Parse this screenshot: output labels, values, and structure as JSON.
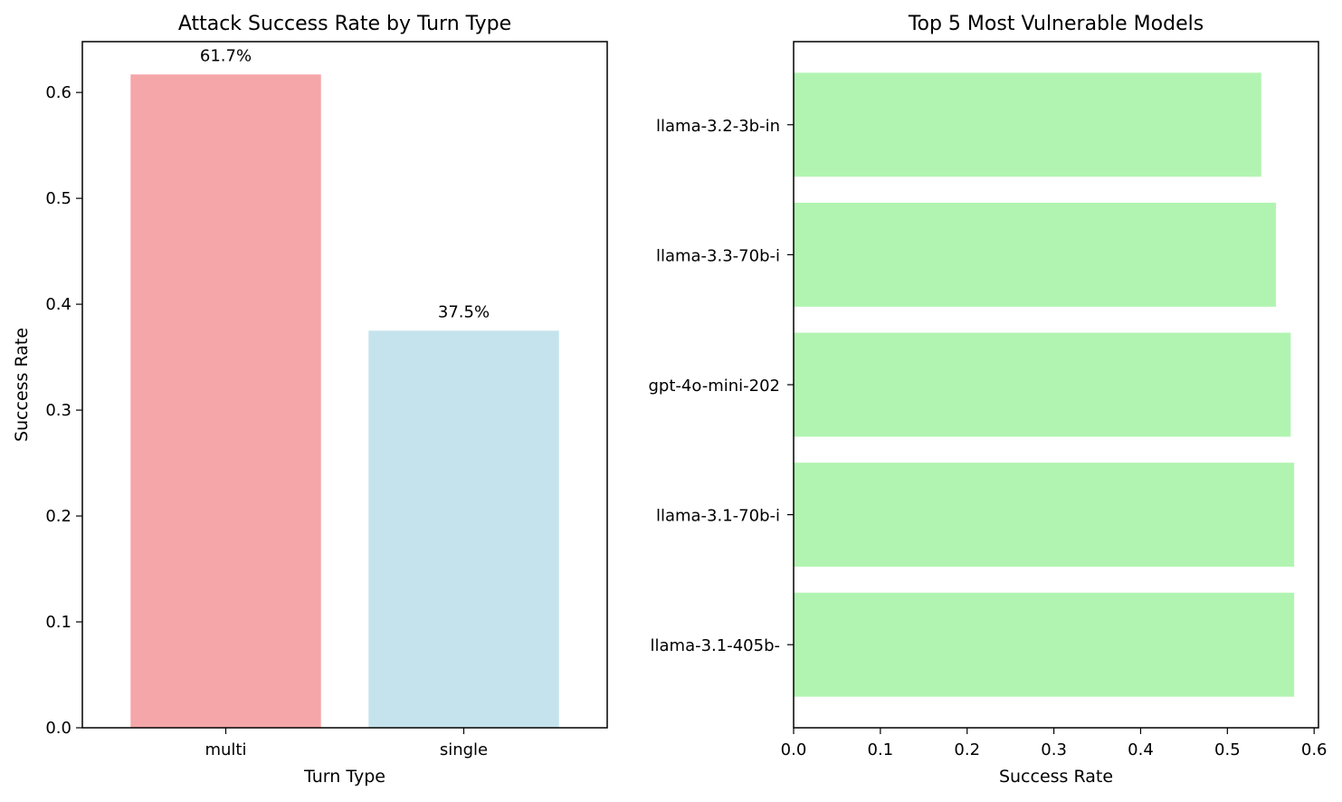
{
  "chart_data": [
    {
      "type": "bar",
      "title": "Attack Success Rate by Turn Type",
      "xlabel": "Turn Type",
      "ylabel": "Success Rate",
      "categories": [
        "multi",
        "single"
      ],
      "values": [
        0.617,
        0.375
      ],
      "data_labels": [
        "61.7%",
        "37.5%"
      ],
      "colors": [
        "#f4a6a8",
        "#c5e3ec"
      ],
      "ylim": [
        0,
        0.648
      ],
      "yticks": [
        0.0,
        0.1,
        0.2,
        0.3,
        0.4,
        0.5,
        0.6
      ],
      "ytick_labels": [
        "0.0",
        "0.1",
        "0.2",
        "0.3",
        "0.4",
        "0.5",
        "0.6"
      ],
      "grid": false,
      "legend": "none"
    },
    {
      "type": "bar",
      "orientation": "horizontal",
      "title": "Top 5 Most Vulnerable Models",
      "xlabel": "Success Rate",
      "ylabel": "",
      "categories": [
        "llama-3.2-3b-in",
        "llama-3.3-70b-i",
        "gpt-4o-mini-202",
        "llama-3.1-70b-i",
        "llama-3.1-405b-"
      ],
      "values": [
        0.539,
        0.556,
        0.573,
        0.577,
        0.577
      ],
      "color": "#b1f4b1",
      "xlim": [
        0,
        0.605
      ],
      "xticks": [
        0.0,
        0.1,
        0.2,
        0.3,
        0.4,
        0.5,
        0.6
      ],
      "xtick_labels": [
        "0.0",
        "0.1",
        "0.2",
        "0.3",
        "0.4",
        "0.5",
        "0.6"
      ],
      "grid": false,
      "legend": "none"
    }
  ]
}
